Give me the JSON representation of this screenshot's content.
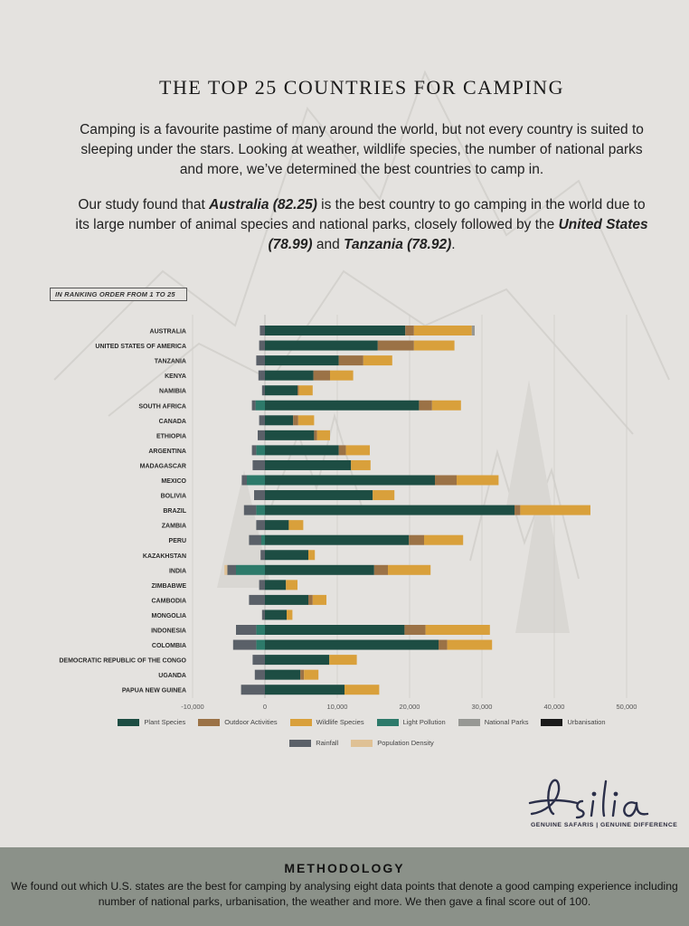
{
  "title": "THE TOP 25 COUNTRIES FOR CAMPING",
  "intro": {
    "p1": "Camping is a favourite pastime of many around the world, but not every country is suited to sleeping under the stars. Looking at weather, wildlife species, the number of national parks and more, we’ve determined the best countries to camp in.",
    "p2_a": "Our study found that ",
    "p2_b": "Australia (82.25)",
    "p2_c": " is the best country to go camping in the world due to its large number of animal species and national parks, closely followed by the ",
    "p2_d": "United States (78.99)",
    "p2_e": " and ",
    "p2_f": "Tanzania (78.92)",
    "p2_g": "."
  },
  "rank_tag": "IN RANKING ORDER FROM 1 TO 25",
  "chart_data": {
    "type": "bar",
    "orientation": "horizontal",
    "stacked": true,
    "title": "THE TOP 25 COUNTRIES FOR CAMPING",
    "xlim": [
      -10000,
      50000
    ],
    "xticks": [
      -10000,
      0,
      10000,
      20000,
      30000,
      40000,
      50000
    ],
    "xtick_labels": [
      "-10,000",
      "0",
      "10,000",
      "20,000",
      "30,000",
      "40,000",
      "50,000"
    ],
    "categories": [
      "AUSTRALIA",
      "UNITED STATES OF AMERICA",
      "TANZANIA",
      "KENYA",
      "NAMIBIA",
      "SOUTH AFRICA",
      "CANADA",
      "ETHIOPIA",
      "ARGENTINA",
      "MADAGASCAR",
      "MEXICO",
      "BOLIVIA",
      "BRAZIL",
      "ZAMBIA",
      "PERU",
      "KAZAKHSTAN",
      "INDIA",
      "ZIMBABWE",
      "CAMBODIA",
      "MONGOLIA",
      "INDONESIA",
      "COLOMBIA",
      "DEMOCRATIC REPUBLIC OF THE CONGO",
      "UGANDA",
      "PAPUA NEW GUINEA"
    ],
    "series": [
      {
        "name": "Plant Species",
        "color": "#1d4d43",
        "values": [
          19400,
          15600,
          10200,
          6700,
          4500,
          21300,
          3900,
          6800,
          10200,
          11900,
          23500,
          14900,
          34500,
          3300,
          19900,
          6000,
          15100,
          2900,
          6000,
          3000,
          19300,
          24000,
          8900,
          4900,
          11000
        ]
      },
      {
        "name": "Outdoor Activities",
        "color": "#9b7246",
        "values": [
          1200,
          5000,
          3400,
          2300,
          200,
          1800,
          700,
          400,
          1000,
          0,
          3000,
          0,
          800,
          0,
          2100,
          0,
          1900,
          0,
          600,
          0,
          2900,
          1200,
          0,
          500,
          0
        ]
      },
      {
        "name": "Wildlife Species",
        "color": "#d9a03b",
        "values": [
          8000,
          5600,
          4000,
          3200,
          1900,
          4000,
          2200,
          1800,
          3300,
          2700,
          5800,
          3000,
          9700,
          2000,
          5400,
          900,
          5900,
          1600,
          1900,
          800,
          8900,
          6200,
          3800,
          2000,
          4800
        ]
      },
      {
        "name": "Light Pollution",
        "color": "#2d7a6a",
        "values": [
          0,
          0,
          0,
          0,
          0,
          -1300,
          0,
          0,
          -1200,
          0,
          -2500,
          0,
          -1200,
          0,
          -500,
          0,
          -4000,
          0,
          0,
          0,
          -1200,
          -1200,
          0,
          0,
          0
        ]
      },
      {
        "name": "National Parks",
        "color": "#979894",
        "values": [
          400,
          0,
          0,
          0,
          0,
          0,
          0,
          0,
          0,
          0,
          0,
          0,
          0,
          0,
          0,
          0,
          0,
          0,
          0,
          0,
          0,
          0,
          0,
          0,
          0
        ]
      },
      {
        "name": "Urbanisation",
        "color": "#1a1a1a",
        "values": [
          0,
          0,
          0,
          0,
          0,
          0,
          0,
          0,
          0,
          0,
          0,
          0,
          0,
          0,
          0,
          0,
          0,
          0,
          0,
          0,
          0,
          0,
          0,
          0,
          0
        ]
      },
      {
        "name": "Rainfall",
        "color": "#5a6068",
        "values": [
          -700,
          -800,
          -1200,
          -900,
          -400,
          -500,
          -800,
          -1000,
          -600,
          -1700,
          -700,
          -1500,
          -1700,
          -1200,
          -1700,
          -600,
          -1200,
          -800,
          -2200,
          -400,
          -2800,
          -3200,
          -1700,
          -1400,
          -3300
        ]
      },
      {
        "name": "Population Density",
        "color": "#dfc195",
        "values": [
          0,
          0,
          0,
          0,
          0,
          0,
          0,
          0,
          0,
          0,
          0,
          0,
          0,
          0,
          0,
          0,
          -400,
          0,
          0,
          0,
          0,
          0,
          0,
          0,
          0
        ]
      }
    ],
    "legend": [
      "Plant Species",
      "Outdoor Activities",
      "Wildlife Species",
      "Light Pollution",
      "National Parks",
      "Urbanisation",
      "Rainfall",
      "Population Density"
    ],
    "legend_position": "bottom",
    "grid": true
  },
  "logo": {
    "name": "Asilia",
    "tagline": "GENUINE SAFARIS | GENUINE DIFFERENCE"
  },
  "methodology": {
    "title": "METHODOLOGY",
    "body": "We found out which U.S. states are the best for camping by analysing eight data points that denote a good camping experience including number of national parks, urbanisation, the weather and more. We then gave a final score out of 100."
  }
}
